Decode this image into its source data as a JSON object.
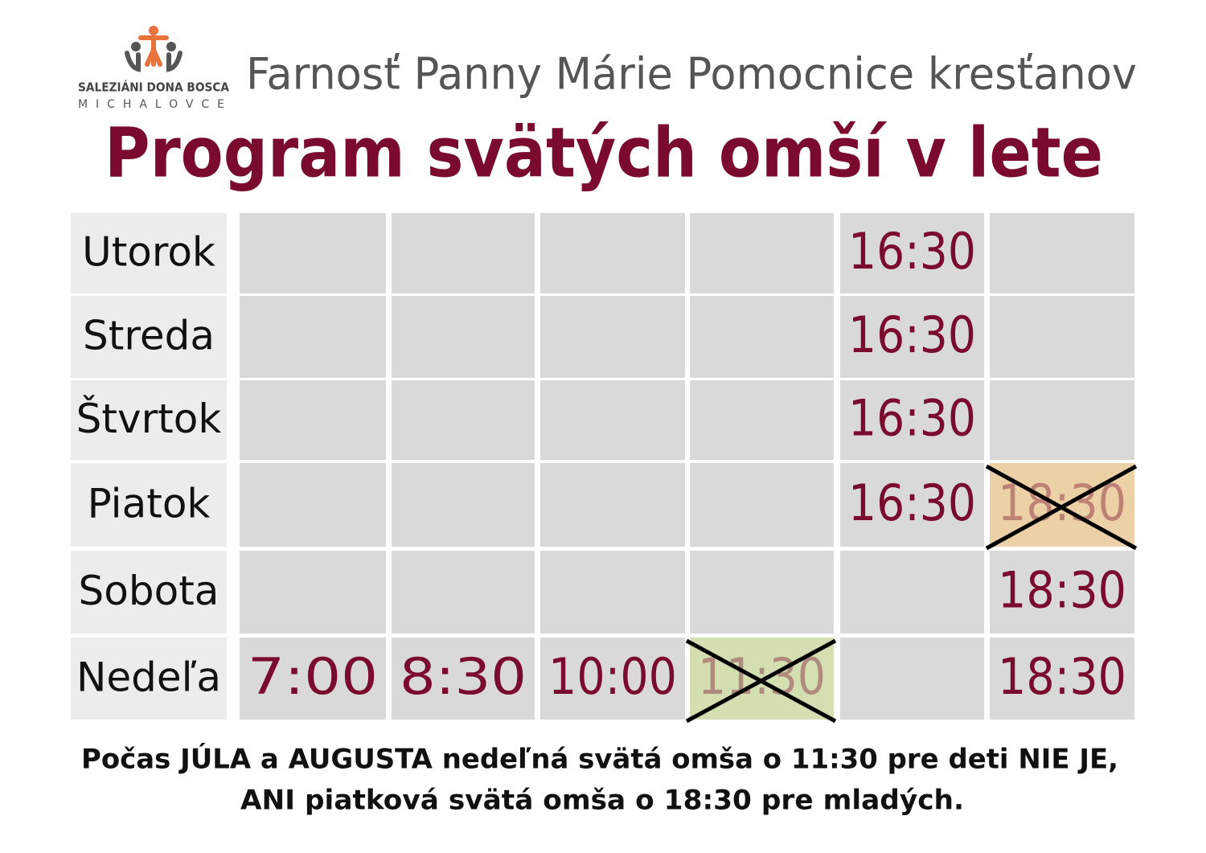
{
  "header": {
    "logo_name": "SALEZIÁNI DONA BOSCA",
    "logo_city": "MICHALOVCE",
    "parish": "Farnosť Panny Márie Pomocnice kresťanov",
    "title": "Program svätých omší v lete"
  },
  "table": {
    "rows": [
      {
        "day": "Utorok",
        "cells": [
          null,
          null,
          null,
          null,
          {
            "text": "16:30"
          },
          null
        ]
      },
      {
        "day": "Streda",
        "cells": [
          null,
          null,
          null,
          null,
          {
            "text": "16:30"
          },
          null
        ]
      },
      {
        "day": "Štvrtok",
        "cells": [
          null,
          null,
          null,
          null,
          {
            "text": "16:30"
          },
          null
        ]
      },
      {
        "day": "Piatok",
        "cells": [
          null,
          null,
          null,
          null,
          {
            "text": "16:30"
          },
          {
            "text": "18:30",
            "cancelled": true
          }
        ]
      },
      {
        "day": "Sobota",
        "cells": [
          null,
          null,
          null,
          null,
          null,
          {
            "text": "18:30"
          }
        ]
      },
      {
        "day": "Nedeľa",
        "cells": [
          {
            "text": "7:00"
          },
          {
            "text": "8:30"
          },
          {
            "text": "10:00"
          },
          {
            "text": "11:30",
            "cancelled": true
          },
          null,
          {
            "text": "18:30"
          }
        ]
      }
    ]
  },
  "footer": {
    "lines": [
      "Počas JÚLA a AUGUSTA nedeľná svätá omša o 11:30 pre deti NIE JE,",
      "ANI piatková svätá omša o 18:30 pre mladých."
    ]
  }
}
